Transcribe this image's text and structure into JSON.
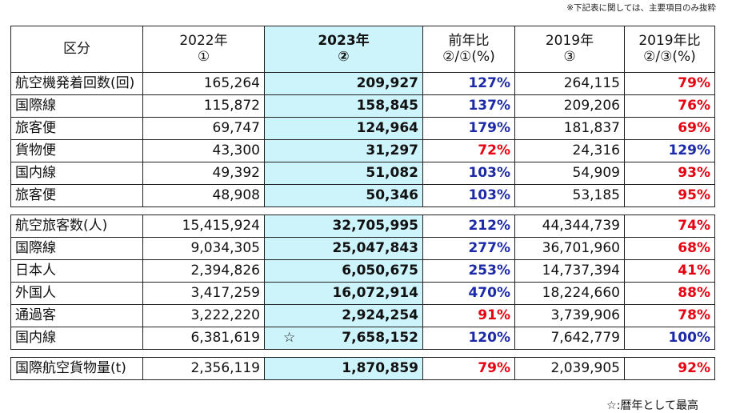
{
  "notes": {
    "top": "※下記表に関しては、主要項目のみ抜粋",
    "bottom": "☆:暦年として最高"
  },
  "headers": {
    "category": "区分",
    "y2022": "2022年",
    "y2022_mark": "①",
    "y2023": "2023年",
    "y2023_mark": "②",
    "yoy": "前年比",
    "yoy_formula": "②/①(%)",
    "y2019": "2019年",
    "y2019_mark": "③",
    "vs2019": "2019年比",
    "vs2019_formula": "②/③(%)"
  },
  "groups": [
    {
      "rows": [
        {
          "label": "航空機発着回数(回)",
          "level": 0,
          "v2022": "165,264",
          "v2023": "209,927",
          "star": "",
          "yoy": "127%",
          "v2019": "264,115",
          "vs2019": "79%"
        },
        {
          "label": "国際線",
          "level": 1,
          "v2022": "115,872",
          "v2023": "158,845",
          "star": "",
          "yoy": "137%",
          "v2019": "209,206",
          "vs2019": "76%"
        },
        {
          "label": "旅客便",
          "level": 2,
          "v2022": "69,747",
          "v2023": "124,964",
          "star": "",
          "yoy": "179%",
          "v2019": "181,837",
          "vs2019": "69%"
        },
        {
          "label": "貨物便",
          "level": 2,
          "v2022": "43,300",
          "v2023": "31,297",
          "star": "",
          "yoy": "72%",
          "v2019": "24,316",
          "vs2019": "129%"
        },
        {
          "label": "国内線",
          "level": 1,
          "v2022": "49,392",
          "v2023": "51,082",
          "star": "",
          "yoy": "103%",
          "v2019": "54,909",
          "vs2019": "93%"
        },
        {
          "label": "旅客便",
          "level": 2,
          "v2022": "48,908",
          "v2023": "50,346",
          "star": "",
          "yoy": "103%",
          "v2019": "53,185",
          "vs2019": "95%"
        }
      ]
    },
    {
      "rows": [
        {
          "label": "航空旅客数(人)",
          "level": 0,
          "v2022": "15,415,924",
          "v2023": "32,705,995",
          "star": "",
          "yoy": "212%",
          "v2019": "44,344,739",
          "vs2019": "74%"
        },
        {
          "label": "国際線",
          "level": 1,
          "v2022": "9,034,305",
          "v2023": "25,047,843",
          "star": "",
          "yoy": "277%",
          "v2019": "36,701,960",
          "vs2019": "68%"
        },
        {
          "label": "日本人",
          "level": 2,
          "v2022": "2,394,826",
          "v2023": "6,050,675",
          "star": "",
          "yoy": "253%",
          "v2019": "14,737,394",
          "vs2019": "41%"
        },
        {
          "label": "外国人",
          "level": 2,
          "v2022": "3,417,259",
          "v2023": "16,072,914",
          "star": "",
          "yoy": "470%",
          "v2019": "18,224,660",
          "vs2019": "88%"
        },
        {
          "label": "通過客",
          "level": 2,
          "v2022": "3,222,220",
          "v2023": "2,924,254",
          "star": "",
          "yoy": "91%",
          "v2019": "3,739,906",
          "vs2019": "78%"
        },
        {
          "label": "国内線",
          "level": 1,
          "v2022": "6,381,619",
          "v2023": "7,658,152",
          "star": "☆",
          "yoy": "120%",
          "v2019": "7,642,779",
          "vs2019": "100%"
        }
      ]
    },
    {
      "rows": [
        {
          "label": "国際航空貨物量(t)",
          "level": 0,
          "v2022": "2,356,119",
          "v2023": "1,870,859",
          "star": "",
          "yoy": "79%",
          "v2019": "2,039,905",
          "vs2019": "92%"
        }
      ]
    }
  ],
  "colors": {
    "increase": "#1d2aa8",
    "decrease": "#e60012",
    "highlight_column": "#cdf3fb"
  }
}
